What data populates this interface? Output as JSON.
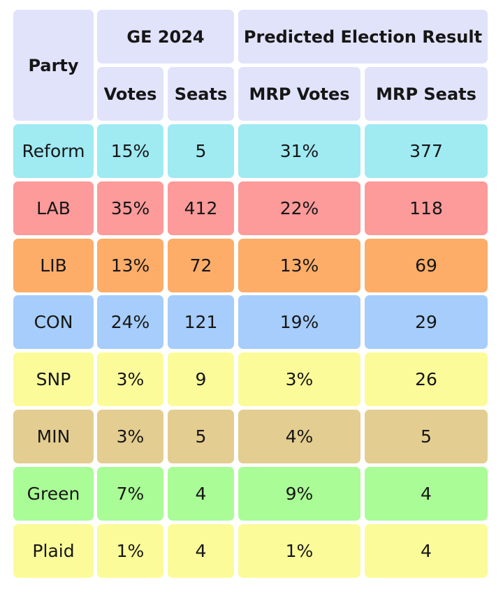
{
  "chart_data": {
    "type": "table",
    "header": {
      "party": "Party",
      "group1": "GE 2024",
      "group2": "Predicted Election Result",
      "columns": [
        "Votes",
        "Seats",
        "MRP Votes",
        "MRP Seats"
      ]
    },
    "rows": [
      {
        "party": "Reform",
        "color": "#a0eaf2",
        "cells": [
          "15%",
          "5",
          "31%",
          "377"
        ]
      },
      {
        "party": "LAB",
        "color": "#fd9a9a",
        "cells": [
          "35%",
          "412",
          "22%",
          "118"
        ]
      },
      {
        "party": "LIB",
        "color": "#fdad68",
        "cells": [
          "13%",
          "72",
          "13%",
          "69"
        ]
      },
      {
        "party": "CON",
        "color": "#a6cdfb",
        "cells": [
          "24%",
          "121",
          "19%",
          "29"
        ]
      },
      {
        "party": "SNP",
        "color": "#fbfb9a",
        "cells": [
          "3%",
          "9",
          "3%",
          "26"
        ]
      },
      {
        "party": "MIN",
        "color": "#e4cd90",
        "cells": [
          "3%",
          "5",
          "4%",
          "5"
        ]
      },
      {
        "party": "Green",
        "color": "#aafc96",
        "cells": [
          "7%",
          "4",
          "9%",
          "4"
        ]
      },
      {
        "party": "Plaid",
        "color": "#fbfb9a",
        "cells": [
          "1%",
          "4",
          "1%",
          "4"
        ]
      }
    ]
  }
}
